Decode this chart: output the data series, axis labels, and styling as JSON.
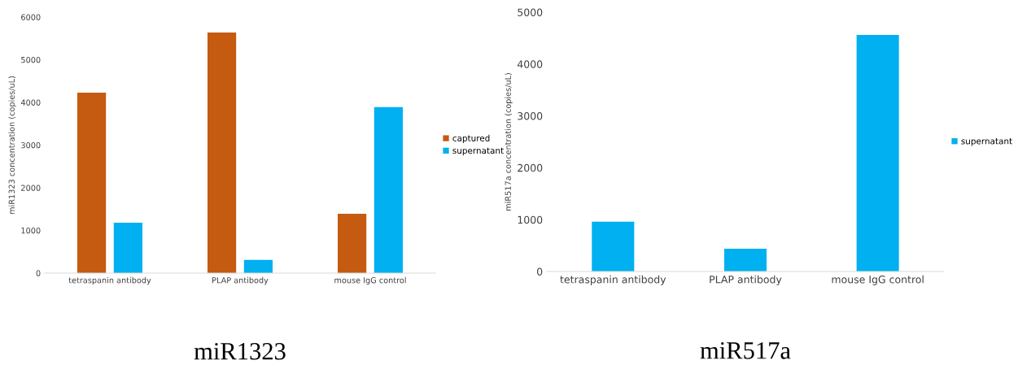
{
  "chart_data": [
    {
      "type": "bar",
      "title": "miR1323",
      "ylabel": "miR1323 concentration (copies/uL)",
      "categories": [
        "tetraspanin antibody",
        "PLAP antibody",
        "mouse IgG control"
      ],
      "series": [
        {
          "name": "captured",
          "color": "#c55a11",
          "values": [
            4230,
            5640,
            1390
          ]
        },
        {
          "name": "supernatant",
          "color": "#00b0f0",
          "values": [
            1180,
            310,
            3890
          ]
        }
      ],
      "ylim": [
        0,
        6000
      ],
      "yticks": [
        0,
        1000,
        2000,
        3000,
        4000,
        5000,
        6000
      ],
      "grid": false,
      "legend": "right"
    },
    {
      "type": "bar",
      "title": "miR517a",
      "ylabel": "miR517a concentration (copies/uL)",
      "categories": [
        "tetraspanin antibody",
        "PLAP antibody",
        "mouse IgG control"
      ],
      "series": [
        {
          "name": "supernatant",
          "color": "#00b0f0",
          "values": [
            960,
            440,
            4560
          ]
        }
      ],
      "ylim": [
        0,
        5000
      ],
      "yticks": [
        0,
        1000,
        2000,
        3000,
        4000,
        5000
      ],
      "grid": false,
      "legend": "right"
    }
  ]
}
